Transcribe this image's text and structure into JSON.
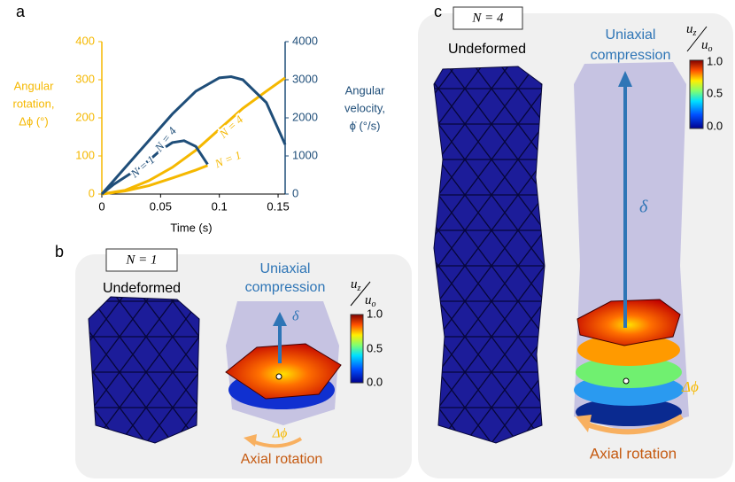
{
  "chart_data": {
    "type": "line",
    "panel_label": "a",
    "xlabel": "Time (s)",
    "ylabel": [
      "Angular",
      "rotation,",
      "Δϕ (°)"
    ],
    "y2label": [
      "Angular",
      "velocity,",
      "ϕ̇ (°/s)"
    ],
    "xlim": [
      0,
      0.156
    ],
    "xticks": [
      0,
      0.05,
      0.1,
      0.15
    ],
    "ylim": [
      0,
      400
    ],
    "yticks": [
      0,
      100,
      200,
      300,
      400
    ],
    "y2lim": [
      0,
      4000
    ],
    "y2ticks": [
      0,
      1000,
      2000,
      3000,
      4000
    ],
    "ycolor": "#f5b800",
    "y2color": "#1f4e79",
    "series": [
      {
        "name": "N = 1",
        "color": "#f5b800",
        "x": [
          0,
          0.02,
          0.04,
          0.06,
          0.08,
          0.09
        ],
        "values": [
          0,
          8,
          22,
          42,
          63,
          75
        ]
      },
      {
        "name": "N = 4",
        "color": "#f5b800",
        "x": [
          0,
          0.02,
          0.04,
          0.06,
          0.08,
          0.1,
          0.12,
          0.14,
          0.156
        ],
        "values": [
          0,
          10,
          35,
          70,
          115,
          170,
          225,
          270,
          305
        ]
      },
      {
        "name": "N = 1",
        "color": "#1f4e79",
        "axis": "y2",
        "x": [
          0,
          0.01,
          0.02,
          0.03,
          0.04,
          0.05,
          0.06,
          0.07,
          0.08,
          0.09
        ],
        "values": [
          0,
          250,
          450,
          650,
          880,
          1150,
          1350,
          1400,
          1250,
          780
        ]
      },
      {
        "name": "N = 4",
        "color": "#1f4e79",
        "axis": "y2",
        "x": [
          0,
          0.01,
          0.02,
          0.04,
          0.06,
          0.08,
          0.1,
          0.11,
          0.12,
          0.14,
          0.156
        ],
        "values": [
          0,
          350,
          700,
          1400,
          2100,
          2700,
          3050,
          3080,
          3000,
          2400,
          1300
        ]
      }
    ]
  },
  "panel_b": {
    "label": "b",
    "n": "N = 1",
    "undeformed": "Undeformed",
    "compression": [
      "Uniaxial",
      "compression"
    ],
    "colorbar": {
      "num": "u",
      "num_sub": "z",
      "den": "u",
      "den_sub": "o",
      "ticks": [
        "1.0",
        "0.5",
        "0.0"
      ]
    },
    "delta": "δ",
    "dphi": "Δϕ",
    "rotation": "Axial rotation"
  },
  "panel_c": {
    "label": "c",
    "n": "N = 4",
    "undeformed": "Undeformed",
    "compression": [
      "Uniaxial",
      "compression"
    ],
    "colorbar": {
      "num": "u",
      "num_sub": "z",
      "den": "u",
      "den_sub": "o",
      "ticks": [
        "1.0",
        "0.5",
        "0.0"
      ]
    },
    "delta": "δ",
    "dphi": "Δϕ",
    "rotation": "Axial rotation"
  }
}
